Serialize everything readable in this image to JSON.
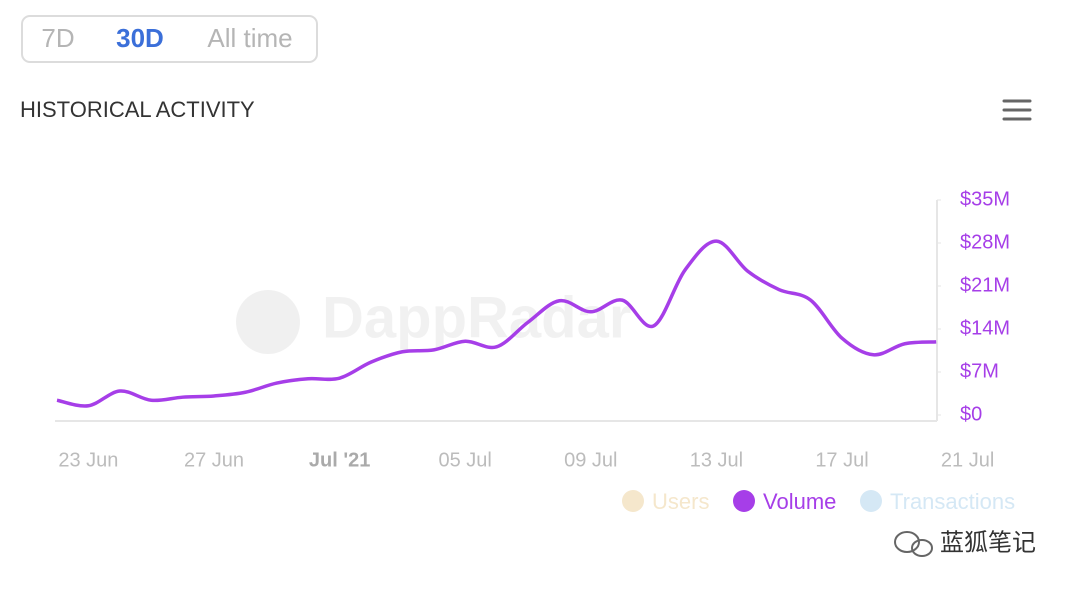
{
  "ui": {
    "tabs": [
      "7D",
      "30D",
      "All time"
    ],
    "active_tab": 1,
    "watermark": "DappRadar",
    "credit": "蓝狐笔记"
  },
  "chart_data": {
    "type": "line",
    "title": "HISTORICAL ACTIVITY",
    "categories": [
      null,
      "23 Jun",
      null,
      null,
      null,
      "27 Jun",
      null,
      null,
      null,
      "Jul '21",
      null,
      null,
      null,
      "05 Jul",
      null,
      null,
      null,
      "09 Jul",
      null,
      null,
      null,
      "13 Jul",
      null,
      null,
      null,
      "17 Jul",
      null,
      null,
      null,
      "21 Jul"
    ],
    "series": [
      {
        "name": "Users",
        "color": "#f5e7cc",
        "visible": false
      },
      {
        "name": "Volume",
        "color": "#a63ee8",
        "visible": true,
        "axis": "y2",
        "values": [
          2400000,
          1500000,
          3900000,
          2400000,
          2900000,
          3100000,
          3700000,
          5200000,
          5900000,
          6000000,
          8600000,
          10300000,
          10600000,
          12000000,
          11100000,
          15100000,
          18600000,
          16800000,
          18700000,
          14500000,
          23600000,
          28300000,
          23400000,
          20400000,
          18700000,
          12500000,
          9800000,
          11600000,
          11900000,
          null
        ]
      },
      {
        "name": "Transactions",
        "color": "#d5e8f5",
        "visible": false
      }
    ],
    "y2lim": [
      0,
      35000000
    ],
    "y2ticks": [
      {
        "value": 0,
        "label": "$0"
      },
      {
        "value": 7000000,
        "label": "$7M"
      },
      {
        "value": 14000000,
        "label": "$14M"
      },
      {
        "value": 21000000,
        "label": "$21M"
      },
      {
        "value": 28000000,
        "label": "$28M"
      },
      {
        "value": 35000000,
        "label": "$35M"
      }
    ]
  }
}
